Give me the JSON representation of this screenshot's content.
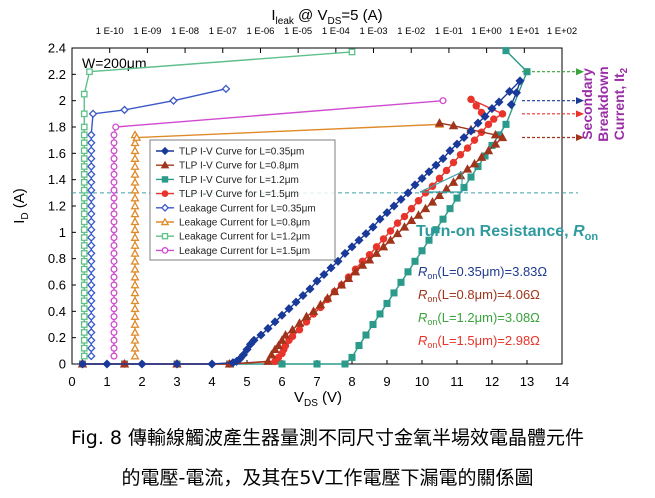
{
  "chart_data": {
    "type": "scatter",
    "x_axis": {
      "label_main": "V",
      "label_sub": "DS",
      "label_unit": "(V)",
      "min": 0,
      "max": 14,
      "ticks": [
        "0",
        "1",
        "2",
        "3",
        "4",
        "5",
        "6",
        "7",
        "8",
        "9",
        "10",
        "11",
        "12",
        "13",
        "14"
      ]
    },
    "y_axis": {
      "label_main": "I",
      "label_sub": "D",
      "label_unit": "(A)",
      "min": 0,
      "max": 2.4,
      "ticks": [
        "0",
        "0.2",
        "0.4",
        "0.6",
        "0.8",
        "1",
        "1.2",
        "1.4",
        "1.6",
        "1.8",
        "2",
        "2.2",
        "2.4"
      ]
    },
    "top_axis": {
      "label_main": "I",
      "label_sub": "leak",
      "label_mid": " @ V",
      "label_sub2": "DS",
      "label_unit": "=5 (A)",
      "log_min": -11,
      "log_max": 2,
      "ticks": [
        "1 E-10",
        "1 E-09",
        "1 E-08",
        "1 E-07",
        "1 E-06",
        "1 E-05",
        "1 E-04",
        "1 E-03",
        "1 E-02",
        "1 E-01",
        "1 E+00",
        "1 E+01",
        "1 E+02"
      ]
    },
    "width_label": "W=200μm",
    "annotations": {
      "secondary_breakdown": [
        "Secondary",
        "Breakdown",
        "Current, It"
      ],
      "secondary_breakdown_sub": "2",
      "turn_on_main": "Turn-on Resistance, ",
      "turn_on_r": "R",
      "turn_on_sub": "on",
      "dashed_level": 1.3
    },
    "ron_values": [
      {
        "prefix": "R",
        "sub": "on",
        "text": "(L=0.35μm)=3.83Ω",
        "color": "#1f3b8f"
      },
      {
        "prefix": "R",
        "sub": "on",
        "text": "(L=0.8μm)=4.06Ω",
        "color": "#a0351c"
      },
      {
        "prefix": "R",
        "sub": "on",
        "text": "(L=1.2μm)=3.08Ω",
        "color": "#39a33c"
      },
      {
        "prefix": "R",
        "sub": "on",
        "text": "(L=1.5μm)=2.98Ω",
        "color": "#e8342a"
      }
    ],
    "series": [
      {
        "name": "TLP I-V Curve for L=0.35μm",
        "color": "#1a3a9a",
        "marker": "diamond",
        "fill": true,
        "axis": "bottom",
        "x": [
          0.3,
          1.0,
          2.0,
          3.0,
          4.0,
          4.6,
          4.7,
          4.8,
          4.9,
          5.0,
          5.1,
          5.2,
          5.4,
          5.6,
          5.8,
          6.0,
          6.2,
          6.4,
          6.6,
          6.8,
          7.0,
          7.2,
          7.4,
          7.6,
          7.8,
          8.0,
          8.2,
          8.4,
          8.6,
          8.8,
          9.0,
          9.2,
          9.4,
          9.6,
          9.8,
          10.0,
          10.2,
          10.4,
          10.6,
          10.8,
          11.0,
          11.2,
          11.4,
          11.6,
          11.8,
          12.0,
          12.2,
          12.5,
          12.8,
          12.7,
          12.55
        ],
        "y": [
          0,
          0,
          0,
          0,
          0,
          0.01,
          0.02,
          0.04,
          0.07,
          0.11,
          0.15,
          0.18,
          0.22,
          0.27,
          0.32,
          0.37,
          0.42,
          0.47,
          0.52,
          0.57,
          0.63,
          0.68,
          0.73,
          0.78,
          0.84,
          0.89,
          0.94,
          0.99,
          1.04,
          1.1,
          1.15,
          1.2,
          1.25,
          1.3,
          1.36,
          1.41,
          1.46,
          1.51,
          1.56,
          1.62,
          1.67,
          1.72,
          1.77,
          1.83,
          1.88,
          1.94,
          1.99,
          2.07,
          2.15,
          2.06,
          1.97
        ]
      },
      {
        "name": "TLP I-V Curve for L=0.8μm",
        "color": "#a0351c",
        "marker": "triangle",
        "fill": true,
        "axis": "bottom",
        "x": [
          0.3,
          1.5,
          3.0,
          4.5,
          5.6,
          5.7,
          5.8,
          5.9,
          6.0,
          6.1,
          6.3,
          6.5,
          6.7,
          6.9,
          7.1,
          7.3,
          7.5,
          7.7,
          7.9,
          8.1,
          8.3,
          8.5,
          8.7,
          8.9,
          9.1,
          9.3,
          9.5,
          9.7,
          9.9,
          10.1,
          10.3,
          10.5,
          10.7,
          10.9,
          11.1,
          11.3,
          11.5,
          11.7,
          11.9,
          12.1,
          12.3,
          12.1,
          11.4,
          10.9,
          10.5
        ],
        "y": [
          0,
          0,
          0,
          0,
          0.02,
          0.07,
          0.11,
          0.14,
          0.18,
          0.22,
          0.26,
          0.31,
          0.36,
          0.4,
          0.45,
          0.5,
          0.55,
          0.6,
          0.65,
          0.7,
          0.75,
          0.79,
          0.84,
          0.89,
          0.94,
          0.99,
          1.04,
          1.09,
          1.13,
          1.18,
          1.23,
          1.28,
          1.33,
          1.38,
          1.43,
          1.48,
          1.52,
          1.57,
          1.62,
          1.67,
          1.72,
          1.74,
          1.78,
          1.81,
          1.83
        ]
      },
      {
        "name": "TLP I-V Curve for L=1.2μm",
        "color": "#2a9a8a",
        "marker": "square",
        "fill": true,
        "axis": "bottom",
        "x": [
          0.3,
          1.5,
          3.0,
          4.5,
          6.0,
          7.0,
          7.8,
          8.0,
          8.2,
          8.4,
          8.6,
          8.8,
          9.0,
          9.2,
          9.4,
          9.6,
          9.8,
          10.0,
          10.2,
          10.4,
          10.6,
          10.8,
          11.0,
          11.2,
          11.4,
          11.6,
          11.8,
          12.0,
          12.2,
          12.4,
          13.0,
          12.4
        ],
        "y": [
          0,
          0,
          0,
          0,
          0,
          0,
          0,
          0.05,
          0.14,
          0.22,
          0.3,
          0.38,
          0.46,
          0.54,
          0.62,
          0.7,
          0.78,
          0.86,
          0.94,
          1.02,
          1.1,
          1.18,
          1.26,
          1.34,
          1.42,
          1.5,
          1.58,
          1.66,
          1.74,
          1.82,
          2.22,
          2.38
        ]
      },
      {
        "name": "TLP I-V Curve for L=1.5μm",
        "color": "#e8342a",
        "marker": "circle",
        "fill": true,
        "axis": "bottom",
        "x": [
          0.3,
          1.5,
          3.0,
          4.5,
          5.8,
          5.9,
          6.0,
          6.05,
          6.1,
          6.2,
          6.3,
          6.5,
          6.7,
          6.9,
          7.1,
          7.3,
          7.5,
          7.7,
          7.9,
          8.1,
          8.3,
          8.5,
          8.7,
          8.9,
          9.1,
          9.3,
          9.5,
          9.7,
          9.9,
          10.1,
          10.3,
          10.5,
          10.7,
          10.9,
          11.1,
          11.3,
          11.5,
          11.7,
          11.9,
          12.05,
          12.3,
          11.4,
          11.55,
          11.7
        ],
        "y": [
          0,
          0,
          0,
          0,
          0.02,
          0.05,
          0.08,
          0.11,
          0.14,
          0.18,
          0.21,
          0.26,
          0.32,
          0.38,
          0.43,
          0.49,
          0.55,
          0.6,
          0.66,
          0.72,
          0.78,
          0.83,
          0.89,
          0.95,
          1.01,
          1.07,
          1.12,
          1.18,
          1.24,
          1.3,
          1.35,
          1.41,
          1.47,
          1.53,
          1.59,
          1.64,
          1.7,
          1.76,
          1.82,
          1.86,
          1.9,
          2.01,
          1.96,
          1.91
        ]
      },
      {
        "name": "Leakage Current for L=0.35μm",
        "color": "#3a58c8",
        "marker": "diamond",
        "fill": false,
        "axis": "bottom",
        "x": [
          0.55,
          0.55,
          0.55,
          0.55,
          0.55,
          0.55,
          0.55,
          0.55,
          0.55,
          0.55,
          0.55,
          0.55,
          0.55,
          0.55,
          0.55,
          0.55,
          0.55,
          0.55,
          0.55,
          0.55,
          0.55,
          0.55,
          0.55,
          0.55,
          0.55,
          0.55,
          0.55,
          0.55,
          0.55,
          0.6,
          1.5,
          2.9,
          4.4
        ],
        "y": [
          0.06,
          0.12,
          0.18,
          0.24,
          0.3,
          0.36,
          0.42,
          0.48,
          0.54,
          0.6,
          0.66,
          0.72,
          0.78,
          0.84,
          0.9,
          0.96,
          1.02,
          1.08,
          1.14,
          1.2,
          1.26,
          1.32,
          1.38,
          1.44,
          1.5,
          1.56,
          1.62,
          1.68,
          1.74,
          1.9,
          1.93,
          2.0,
          2.09
        ]
      },
      {
        "name": "Leakage Current for L=0.8μm",
        "color": "#e08a2a",
        "marker": "triangle",
        "fill": false,
        "axis": "bottom",
        "x": [
          1.8,
          1.8,
          1.8,
          1.8,
          1.8,
          1.8,
          1.8,
          1.8,
          1.8,
          1.8,
          1.8,
          1.8,
          1.8,
          1.8,
          1.8,
          1.8,
          1.8,
          1.8,
          1.8,
          1.8,
          1.8,
          1.8,
          1.8,
          1.8,
          1.8,
          1.8,
          1.8,
          1.8,
          1.8,
          1.85,
          10.5
        ],
        "y": [
          0.06,
          0.12,
          0.18,
          0.24,
          0.3,
          0.36,
          0.42,
          0.48,
          0.54,
          0.6,
          0.66,
          0.72,
          0.78,
          0.84,
          0.9,
          0.96,
          1.02,
          1.08,
          1.14,
          1.2,
          1.26,
          1.32,
          1.38,
          1.44,
          1.5,
          1.56,
          1.62,
          1.68,
          1.74,
          1.72,
          1.82
        ]
      },
      {
        "name": "Leakage Current for L=1.2μm",
        "color": "#5fc08a",
        "marker": "square",
        "fill": false,
        "axis": "bottom",
        "x": [
          0.35,
          0.35,
          0.35,
          0.35,
          0.35,
          0.35,
          0.35,
          0.35,
          0.35,
          0.35,
          0.35,
          0.35,
          0.35,
          0.35,
          0.35,
          0.35,
          0.35,
          0.35,
          0.35,
          0.35,
          0.35,
          0.35,
          0.35,
          0.35,
          0.35,
          0.35,
          0.35,
          0.35,
          0.35,
          0.35,
          0.35,
          0.35,
          0.5,
          8.0
        ],
        "y": [
          0.06,
          0.12,
          0.18,
          0.24,
          0.3,
          0.36,
          0.42,
          0.48,
          0.54,
          0.6,
          0.66,
          0.72,
          0.78,
          0.84,
          0.9,
          0.96,
          1.02,
          1.08,
          1.14,
          1.2,
          1.26,
          1.32,
          1.38,
          1.44,
          1.5,
          1.56,
          1.62,
          1.68,
          1.74,
          1.8,
          1.9,
          2.05,
          2.22,
          2.37
        ]
      },
      {
        "name": "Leakage Current for L=1.5μm",
        "color": "#d04ad0",
        "marker": "circle",
        "fill": false,
        "axis": "bottom",
        "x": [
          1.2,
          1.2,
          1.2,
          1.2,
          1.2,
          1.2,
          1.2,
          1.2,
          1.2,
          1.2,
          1.2,
          1.2,
          1.2,
          1.2,
          1.2,
          1.2,
          1.2,
          1.2,
          1.2,
          1.2,
          1.2,
          1.2,
          1.2,
          1.2,
          1.2,
          1.2,
          1.2,
          1.2,
          1.2,
          1.25,
          10.6
        ],
        "y": [
          0.06,
          0.12,
          0.18,
          0.24,
          0.3,
          0.36,
          0.42,
          0.48,
          0.54,
          0.6,
          0.66,
          0.72,
          0.78,
          0.84,
          0.9,
          0.96,
          1.02,
          1.08,
          1.14,
          1.2,
          1.26,
          1.32,
          1.38,
          1.44,
          1.5,
          1.56,
          1.62,
          1.68,
          1.74,
          1.8,
          2.0
        ]
      }
    ]
  },
  "caption": {
    "line1": "Fig. 8 傳輸線觸波產生器量測不同尺寸金氧半場效電晶體元件",
    "line2": "的電壓-電流，及其在5V工作電壓下漏電的關係圖"
  }
}
